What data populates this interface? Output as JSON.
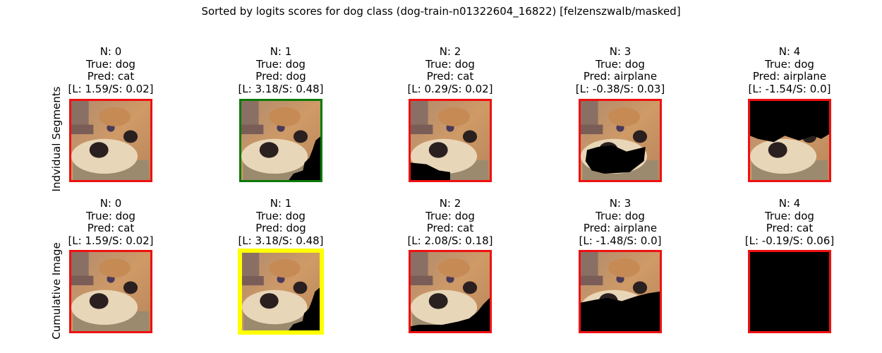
{
  "title": "Sorted by logits scores for dog class (dog-train-n01322604_16822) [felzenszwalb/masked]",
  "row_labels": [
    "Indvidual Segments",
    "Cumulative Image"
  ],
  "colors": {
    "red": "#ee1111",
    "green": "#0a7a0a",
    "yellow": "#ffff00",
    "black": "#000000"
  },
  "chart_data": {
    "type": "image-grid",
    "rows": [
      {
        "label": "Indvidual Segments",
        "panels": [
          {
            "n": "N: 0",
            "true": "True: dog",
            "pred": "Pred: cat",
            "score": "[L: 1.59/S: 0.02]",
            "border": "red",
            "mask": "none"
          },
          {
            "n": "N: 1",
            "true": "True: dog",
            "pred": "Pred: dog",
            "score": "[L: 3.18/S: 0.48]",
            "border": "green",
            "mask": "right"
          },
          {
            "n": "N: 2",
            "true": "True: dog",
            "pred": "Pred: cat",
            "score": "[L: 0.29/S: 0.02]",
            "border": "red",
            "mask": "bottom-left"
          },
          {
            "n": "N: 3",
            "true": "True: dog",
            "pred": "Pred: airplane",
            "score": "[L: -0.38/S: 0.03]",
            "border": "red",
            "mask": "middle"
          },
          {
            "n": "N: 4",
            "true": "True: dog",
            "pred": "Pred: airplane",
            "score": "[L: -1.54/S: 0.0]",
            "border": "red",
            "mask": "top"
          }
        ]
      },
      {
        "label": "Cumulative Image",
        "panels": [
          {
            "n": "N: 0",
            "true": "True: dog",
            "pred": "Pred: cat",
            "score": "[L: 1.59/S: 0.02]",
            "border": "red",
            "mask": "none"
          },
          {
            "n": "N: 1",
            "true": "True: dog",
            "pred": "Pred: dog",
            "score": "[L: 3.18/S: 0.48]",
            "border": "yellow",
            "mask": "right"
          },
          {
            "n": "N: 2",
            "true": "True: dog",
            "pred": "Pred: cat",
            "score": "[L: 2.08/S: 0.18]",
            "border": "red",
            "mask": "bottom"
          },
          {
            "n": "N: 3",
            "true": "True: dog",
            "pred": "Pred: airplane",
            "score": "[L: -1.48/S: 0.0]",
            "border": "red",
            "mask": "lower-half"
          },
          {
            "n": "N: 4",
            "true": "True: dog",
            "pred": "Pred: cat",
            "score": "[L: -0.19/S: 0.06]",
            "border": "red",
            "mask": "all"
          }
        ]
      }
    ]
  }
}
